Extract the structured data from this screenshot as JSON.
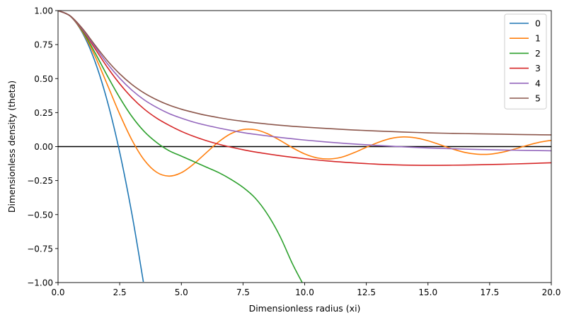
{
  "chart_data": {
    "type": "line",
    "xlabel": "Dimensionless radius (xi)",
    "ylabel": "Dimensionless density (theta)",
    "xlim": [
      0.0,
      20.0
    ],
    "ylim": [
      -1.0,
      1.0
    ],
    "xticks": [
      "0.0",
      "2.5",
      "5.0",
      "7.5",
      "10.0",
      "12.5",
      "15.0",
      "17.5",
      "20.0"
    ],
    "yticks": [
      "1.00",
      "0.75",
      "0.50",
      "0.25",
      "0.00",
      "−0.25",
      "−0.50",
      "−0.75",
      "−1.00"
    ],
    "grid": false,
    "legend_position": "top-right",
    "reference_line": {
      "y": 0.0,
      "color": "#000000"
    },
    "series": [
      {
        "name": "0",
        "color": "#1f77b4",
        "x": [
          0,
          0.5,
          1,
          1.5,
          2,
          2.5,
          3,
          3.46
        ],
        "y": [
          1.0,
          0.958,
          0.833,
          0.625,
          0.333,
          -0.042,
          -0.5,
          -0.995
        ]
      },
      {
        "name": "1",
        "color": "#ff7f0e",
        "x": [
          0,
          0.5,
          1,
          1.5,
          2,
          2.5,
          3,
          3.5,
          4,
          4.5,
          5,
          5.5,
          6,
          6.5,
          7,
          7.5,
          8,
          8.5,
          9,
          9.5,
          10,
          10.5,
          11,
          11.5,
          12,
          12.5,
          13,
          13.5,
          14,
          14.5,
          15,
          15.5,
          16,
          16.5,
          17,
          17.5,
          18,
          18.5,
          19,
          19.5,
          20
        ],
        "y": [
          1.0,
          0.959,
          0.841,
          0.665,
          0.455,
          0.239,
          0.047,
          -0.1,
          -0.189,
          -0.217,
          -0.192,
          -0.128,
          -0.047,
          0.033,
          0.094,
          0.125,
          0.124,
          0.094,
          0.046,
          -0.008,
          -0.054,
          -0.083,
          -0.091,
          -0.078,
          -0.045,
          -0.005,
          0.032,
          0.06,
          0.071,
          0.064,
          0.043,
          0.013,
          -0.018,
          -0.043,
          -0.056,
          -0.056,
          -0.042,
          -0.019,
          0.008,
          0.031,
          0.046
        ]
      },
      {
        "name": "2",
        "color": "#2ca02c",
        "x": [
          0,
          0.5,
          1,
          1.5,
          2,
          2.5,
          3,
          3.5,
          4,
          4.5,
          5,
          5.5,
          6,
          6.5,
          7,
          7.5,
          8,
          8.5,
          9,
          9.5,
          9.9
        ],
        "y": [
          1.0,
          0.96,
          0.848,
          0.69,
          0.52,
          0.36,
          0.22,
          0.11,
          0.03,
          -0.03,
          -0.07,
          -0.11,
          -0.15,
          -0.19,
          -0.24,
          -0.3,
          -0.38,
          -0.5,
          -0.66,
          -0.86,
          -1.0
        ]
      },
      {
        "name": "3",
        "color": "#d62728",
        "x": [
          0,
          0.5,
          1,
          1.5,
          2,
          2.5,
          3,
          3.5,
          4,
          4.5,
          5,
          5.5,
          6,
          6.5,
          7,
          7.5,
          8,
          9,
          10,
          11,
          12,
          13,
          14,
          15,
          16,
          17,
          18,
          19,
          20
        ],
        "y": [
          1.0,
          0.96,
          0.855,
          0.72,
          0.583,
          0.462,
          0.359,
          0.275,
          0.209,
          0.157,
          0.112,
          0.075,
          0.044,
          0.018,
          -0.004,
          -0.023,
          -0.04,
          -0.067,
          -0.089,
          -0.107,
          -0.12,
          -0.13,
          -0.136,
          -0.138,
          -0.137,
          -0.134,
          -0.13,
          -0.125,
          -0.119
        ]
      },
      {
        "name": "4",
        "color": "#9467bd",
        "x": [
          0,
          0.5,
          1,
          1.5,
          2,
          2.5,
          3,
          3.5,
          4,
          4.5,
          5,
          5.5,
          6,
          6.5,
          7,
          7.5,
          8,
          9,
          10,
          11,
          12,
          13,
          14,
          15,
          16,
          17,
          18,
          19,
          20
        ],
        "y": [
          1.0,
          0.96,
          0.86,
          0.735,
          0.61,
          0.503,
          0.414,
          0.343,
          0.288,
          0.243,
          0.209,
          0.18,
          0.157,
          0.137,
          0.119,
          0.103,
          0.09,
          0.067,
          0.048,
          0.032,
          0.019,
          0.008,
          -0.002,
          -0.01,
          -0.016,
          -0.021,
          -0.025,
          -0.028,
          -0.031
        ]
      },
      {
        "name": "5",
        "color": "#8c564b",
        "x": [
          0,
          0.5,
          1,
          1.5,
          2,
          2.5,
          3,
          3.5,
          4,
          4.5,
          5,
          5.5,
          6,
          6.5,
          7,
          7.5,
          8,
          9,
          10,
          11,
          12,
          13,
          14,
          15,
          16,
          17,
          18,
          19,
          20
        ],
        "y": [
          1.0,
          0.96,
          0.866,
          0.746,
          0.632,
          0.535,
          0.456,
          0.393,
          0.344,
          0.305,
          0.275,
          0.251,
          0.23,
          0.213,
          0.198,
          0.186,
          0.175,
          0.157,
          0.143,
          0.132,
          0.122,
          0.114,
          0.107,
          0.101,
          0.097,
          0.094,
          0.091,
          0.088,
          0.086
        ]
      }
    ]
  }
}
